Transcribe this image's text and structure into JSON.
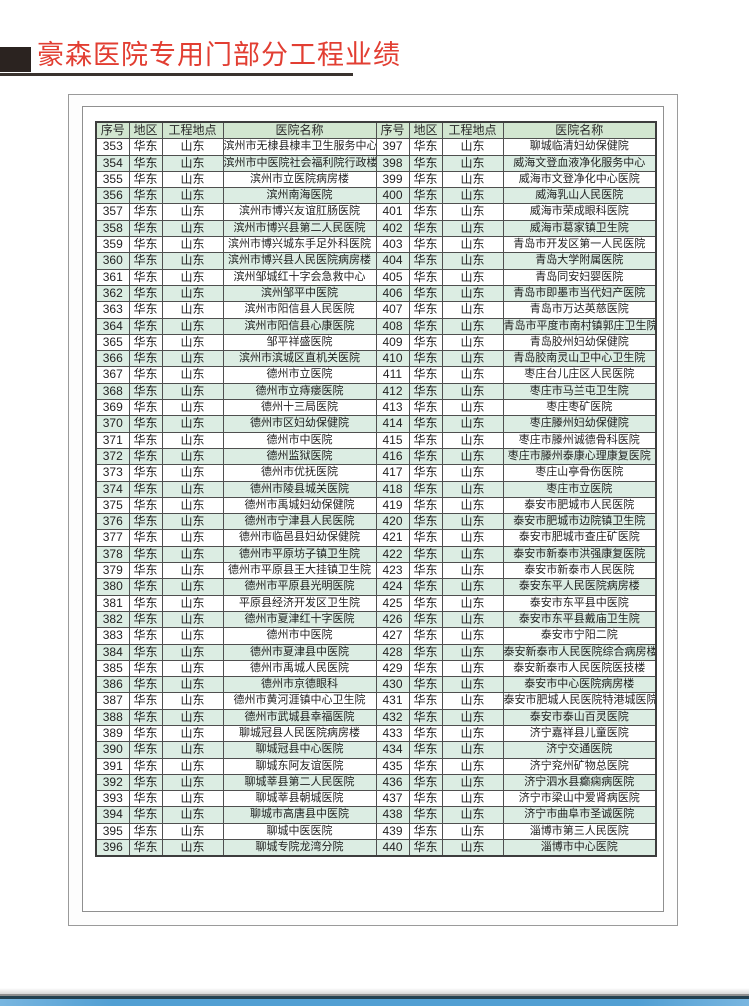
{
  "page_title": "豪森医院专用门部分工程业绩",
  "colors": {
    "title_red": "#e23e32",
    "underline_dark": "#3a332e",
    "header_green": "#d2e6d0",
    "alt_row_green": "#dcede3",
    "grid_line": "#4f4f4f",
    "frame_gray": "#9a9a9a",
    "footer_navy": "#23404f",
    "footer_blue": "#519fd3"
  },
  "table": {
    "headers": [
      "序号",
      "地区",
      "工程地点",
      "医院名称"
    ],
    "left_rows": [
      [
        "353",
        "华东",
        "山东",
        "滨州市无棣县棣丰卫生服务中心"
      ],
      [
        "354",
        "华东",
        "山东",
        "滨州市中医院社会福利院行政楼"
      ],
      [
        "355",
        "华东",
        "山东",
        "滨州市立医院病房楼"
      ],
      [
        "356",
        "华东",
        "山东",
        "滨州南海医院"
      ],
      [
        "357",
        "华东",
        "山东",
        "滨州市博兴友谊肛肠医院"
      ],
      [
        "358",
        "华东",
        "山东",
        "滨州市博兴县第二人民医院"
      ],
      [
        "359",
        "华东",
        "山东",
        "滨州市博兴城东手足外科医院"
      ],
      [
        "360",
        "华东",
        "山东",
        "滨州市博兴县人民医院病房楼"
      ],
      [
        "361",
        "华东",
        "山东",
        "滨州邹城红十字会急救中心"
      ],
      [
        "362",
        "华东",
        "山东",
        "滨州邹平中医院"
      ],
      [
        "363",
        "华东",
        "山东",
        "滨州市阳信县人民医院"
      ],
      [
        "364",
        "华东",
        "山东",
        "滨州市阳信县心康医院"
      ],
      [
        "365",
        "华东",
        "山东",
        "邹平祥盛医院"
      ],
      [
        "366",
        "华东",
        "山东",
        "滨州市滨城区直机关医院"
      ],
      [
        "367",
        "华东",
        "山东",
        "德州市立医院"
      ],
      [
        "368",
        "华东",
        "山东",
        "德州市立痔瘘医院"
      ],
      [
        "369",
        "华东",
        "山东",
        "德州十三局医院"
      ],
      [
        "370",
        "华东",
        "山东",
        "德州市区妇幼保健院"
      ],
      [
        "371",
        "华东",
        "山东",
        "德州市中医院"
      ],
      [
        "372",
        "华东",
        "山东",
        "德州监狱医院"
      ],
      [
        "373",
        "华东",
        "山东",
        "德州市优抚医院"
      ],
      [
        "374",
        "华东",
        "山东",
        "德州市陵县城关医院"
      ],
      [
        "375",
        "华东",
        "山东",
        "德州市禹城妇幼保健院"
      ],
      [
        "376",
        "华东",
        "山东",
        "德州市宁津县人民医院"
      ],
      [
        "377",
        "华东",
        "山东",
        "德州市临邑县妇幼保健院"
      ],
      [
        "378",
        "华东",
        "山东",
        "德州市平原坊子镇卫生院"
      ],
      [
        "379",
        "华东",
        "山东",
        "德州市平原县王大挂镇卫生院"
      ],
      [
        "380",
        "华东",
        "山东",
        "德州市平原县光明医院"
      ],
      [
        "381",
        "华东",
        "山东",
        "平原县经济开发区卫生院"
      ],
      [
        "382",
        "华东",
        "山东",
        "德州市夏津红十字医院"
      ],
      [
        "383",
        "华东",
        "山东",
        "德州市中医院"
      ],
      [
        "384",
        "华东",
        "山东",
        "德州市夏津县中医院"
      ],
      [
        "385",
        "华东",
        "山东",
        "德州市禹城人民医院"
      ],
      [
        "386",
        "华东",
        "山东",
        "德州市京德眼科"
      ],
      [
        "387",
        "华东",
        "山东",
        "德州市黄河涯镇中心卫生院"
      ],
      [
        "388",
        "华东",
        "山东",
        "德州市武城县幸福医院"
      ],
      [
        "389",
        "华东",
        "山东",
        "聊城冠县人民医院病房楼"
      ],
      [
        "390",
        "华东",
        "山东",
        "聊城冠县中心医院"
      ],
      [
        "391",
        "华东",
        "山东",
        "聊城东阿友谊医院"
      ],
      [
        "392",
        "华东",
        "山东",
        "聊城莘县第二人民医院"
      ],
      [
        "393",
        "华东",
        "山东",
        "聊城莘县朝城医院"
      ],
      [
        "394",
        "华东",
        "山东",
        "聊城市高唐县中医院"
      ],
      [
        "395",
        "华东",
        "山东",
        "聊城中医医院"
      ],
      [
        "396",
        "华东",
        "山东",
        "聊城专院龙湾分院"
      ]
    ],
    "right_rows": [
      [
        "397",
        "华东",
        "山东",
        "聊城临清妇幼保健院"
      ],
      [
        "398",
        "华东",
        "山东",
        "威海文登血液净化服务中心"
      ],
      [
        "399",
        "华东",
        "山东",
        "威海市文登净化中心医院"
      ],
      [
        "400",
        "华东",
        "山东",
        "威海乳山人民医院"
      ],
      [
        "401",
        "华东",
        "山东",
        "威海市荣成眼科医院"
      ],
      [
        "402",
        "华东",
        "山东",
        "威海市葛家镇卫生院"
      ],
      [
        "403",
        "华东",
        "山东",
        "青岛市开发区第一人民医院"
      ],
      [
        "404",
        "华东",
        "山东",
        "青岛大学附属医院"
      ],
      [
        "405",
        "华东",
        "山东",
        "青岛同安妇婴医院"
      ],
      [
        "406",
        "华东",
        "山东",
        "青岛市即墨市当代妇产医院"
      ],
      [
        "407",
        "华东",
        "山东",
        "青岛市万达英慈医院"
      ],
      [
        "408",
        "华东",
        "山东",
        "青岛市平度市南村镇郭庄卫生院"
      ],
      [
        "409",
        "华东",
        "山东",
        "青岛胶州妇幼保健院"
      ],
      [
        "410",
        "华东",
        "山东",
        "青岛胶南灵山卫中心卫生院"
      ],
      [
        "411",
        "华东",
        "山东",
        "枣庄台儿庄区人民医院"
      ],
      [
        "412",
        "华东",
        "山东",
        "枣庄市马兰屯卫生院"
      ],
      [
        "413",
        "华东",
        "山东",
        "枣庄枣矿医院"
      ],
      [
        "414",
        "华东",
        "山东",
        "枣庄滕州妇幼保健院"
      ],
      [
        "415",
        "华东",
        "山东",
        "枣庄市滕州诚德骨科医院"
      ],
      [
        "416",
        "华东",
        "山东",
        "枣庄市滕州泰康心理康复医院"
      ],
      [
        "417",
        "华东",
        "山东",
        "枣庄山亭骨伤医院"
      ],
      [
        "418",
        "华东",
        "山东",
        "枣庄市立医院"
      ],
      [
        "419",
        "华东",
        "山东",
        "泰安市肥城市人民医院"
      ],
      [
        "420",
        "华东",
        "山东",
        "泰安市肥城市边院镇卫生院"
      ],
      [
        "421",
        "华东",
        "山东",
        "泰安市肥城市查庄矿医院"
      ],
      [
        "422",
        "华东",
        "山东",
        "泰安市新泰市洪强康复医院"
      ],
      [
        "423",
        "华东",
        "山东",
        "泰安市新泰市人民医院"
      ],
      [
        "424",
        "华东",
        "山东",
        "泰安东平人民医院病房楼"
      ],
      [
        "425",
        "华东",
        "山东",
        "泰安市东平县中医院"
      ],
      [
        "426",
        "华东",
        "山东",
        "泰安市东平县戴庙卫生院"
      ],
      [
        "427",
        "华东",
        "山东",
        "泰安市宁阳二院"
      ],
      [
        "428",
        "华东",
        "山东",
        "泰安新泰市人民医院综合病房楼"
      ],
      [
        "429",
        "华东",
        "山东",
        "泰安新泰市人民医院医技楼"
      ],
      [
        "430",
        "华东",
        "山东",
        "泰安市中心医院病房楼"
      ],
      [
        "431",
        "华东",
        "山东",
        "泰安市肥城人民医院特港城医院"
      ],
      [
        "432",
        "华东",
        "山东",
        "泰安市泰山百灵医院"
      ],
      [
        "433",
        "华东",
        "山东",
        "济宁嘉祥县儿童医院"
      ],
      [
        "434",
        "华东",
        "山东",
        "济宁交通医院"
      ],
      [
        "435",
        "华东",
        "山东",
        "济宁兖州矿物总医院"
      ],
      [
        "436",
        "华东",
        "山东",
        "济宁泗水县癫痫病医院"
      ],
      [
        "437",
        "华东",
        "山东",
        "济宁市梁山中爱肾病医院"
      ],
      [
        "438",
        "华东",
        "山东",
        "济宁市曲阜市圣诚医院"
      ],
      [
        "439",
        "华东",
        "山东",
        "淄博市第三人民医院"
      ],
      [
        "440",
        "华东",
        "山东",
        "淄博市中心医院"
      ]
    ]
  }
}
